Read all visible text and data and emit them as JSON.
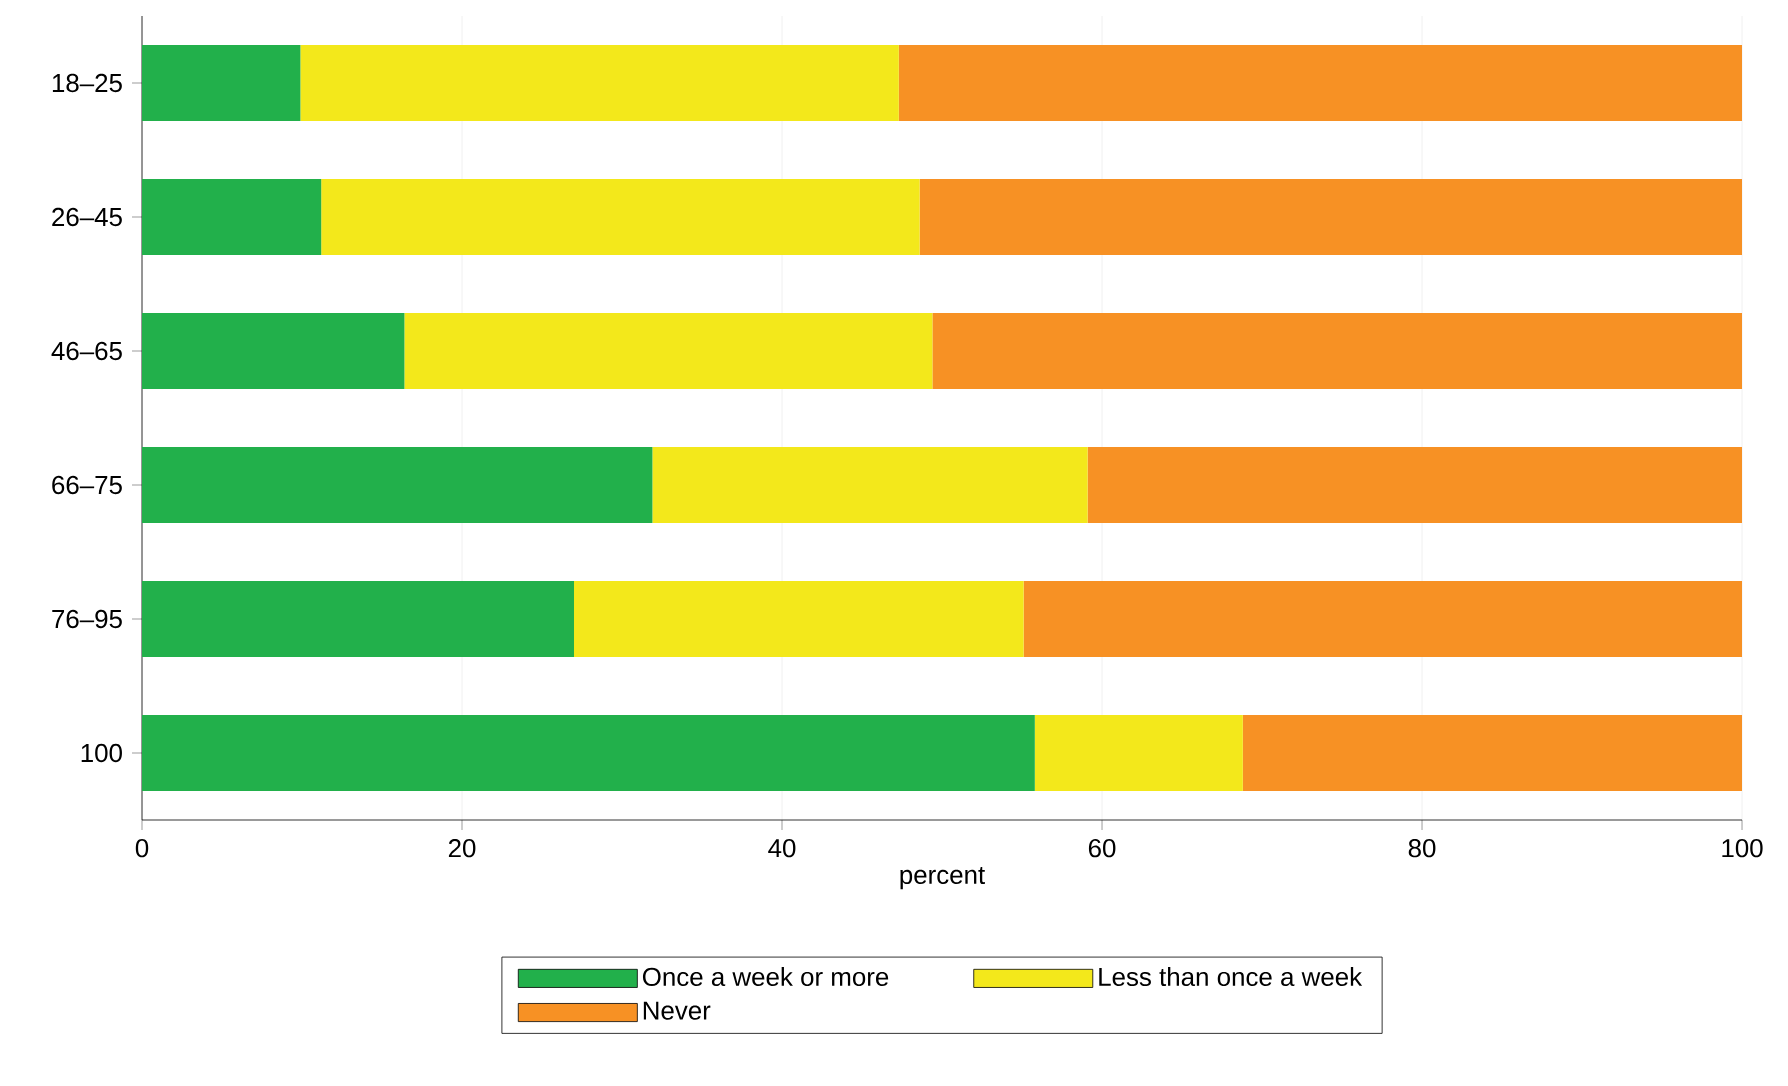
{
  "chart_data": {
    "type": "bar",
    "orientation": "horizontal",
    "stacked": true,
    "categories": [
      "18–25",
      "26–45",
      "46–65",
      "66–75",
      "76–95",
      "100"
    ],
    "series": [
      {
        "name": "Once a week or more",
        "color": "#22b04b",
        "values": [
          9.9,
          11.2,
          16.4,
          31.9,
          27.0,
          55.8
        ]
      },
      {
        "name": "Less than once a week",
        "color": "#f3e81b",
        "values": [
          37.4,
          37.4,
          33.0,
          27.2,
          28.1,
          13.0
        ]
      },
      {
        "name": "Never",
        "color": "#f79124",
        "values": [
          52.7,
          51.4,
          50.6,
          40.9,
          44.9,
          31.2
        ]
      }
    ],
    "xlabel": "percent",
    "xlim": [
      0,
      100
    ],
    "xticks": [
      0,
      20,
      40,
      60,
      80,
      100
    ],
    "grid": "x",
    "legend": "bottom"
  }
}
